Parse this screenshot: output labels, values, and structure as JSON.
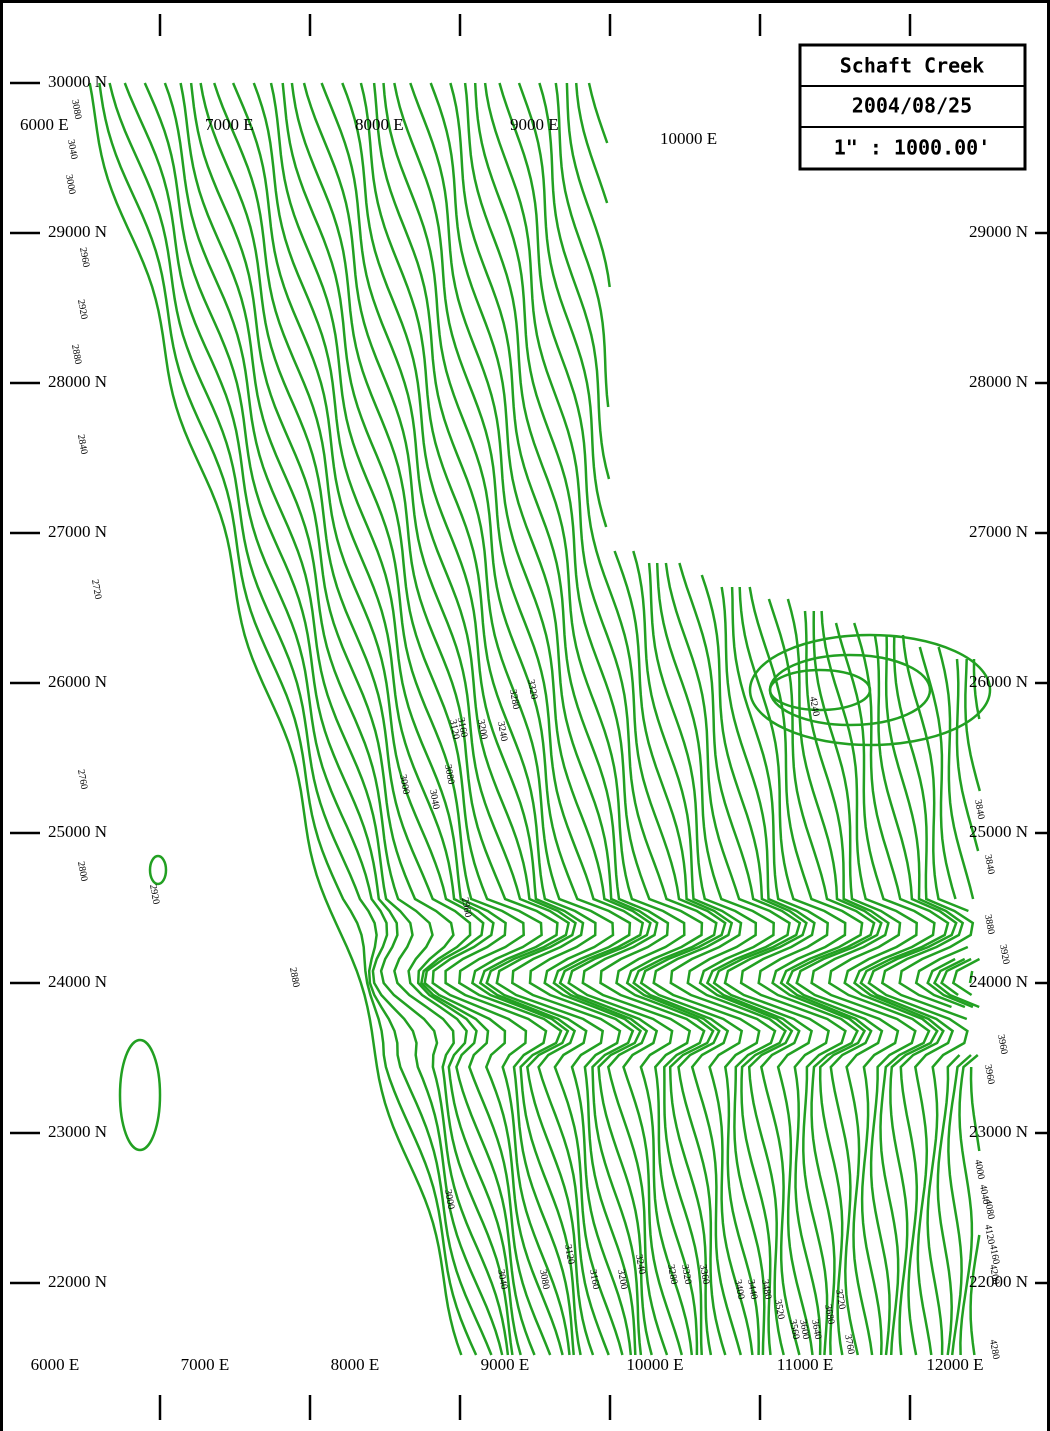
{
  "title_box": {
    "name": "Schaft Creek",
    "date": "2004/08/25",
    "scale": "1\" : 1000.00'"
  },
  "northings_left": [
    "30000 N",
    "29000 N",
    "28000 N",
    "27000 N",
    "26000 N",
    "25000 N",
    "24000 N",
    "23000 N",
    "22000 N"
  ],
  "northings_right": [
    "29000 N",
    "28000 N",
    "27000 N",
    "26000 N",
    "25000 N",
    "24000 N",
    "23000 N",
    "22000 N"
  ],
  "eastings_top": [
    "6000 E",
    "7000 E",
    "8000 E",
    "9000 E",
    "10000 E"
  ],
  "eastings_bottom": [
    "6000 E",
    "7000 E",
    "8000 E",
    "9000 E",
    "10000 E",
    "11000 E",
    "12000 E"
  ],
  "contour_labels": {
    "left": [
      "3080",
      "3040",
      "3000",
      "2960",
      "2920",
      "2880",
      "2840",
      "2800",
      "2760",
      "2720"
    ],
    "center": [
      "3080",
      "3120",
      "3160",
      "3200",
      "3240",
      "3280",
      "3320",
      "3040",
      "3000",
      "2960",
      "2920",
      "2880"
    ],
    "bottom": [
      "3000",
      "3040",
      "3080",
      "3120",
      "3160",
      "3200",
      "3240",
      "3280",
      "3320",
      "3360",
      "3400",
      "3440",
      "3480",
      "3520",
      "3560",
      "3600",
      "3640",
      "3680",
      "3720",
      "3760"
    ],
    "right": [
      "3840",
      "3840",
      "3880",
      "3920",
      "3960",
      "3960",
      "4000",
      "4040",
      "4080",
      "4120",
      "4160",
      "4200",
      "4240",
      "4280"
    ]
  }
}
